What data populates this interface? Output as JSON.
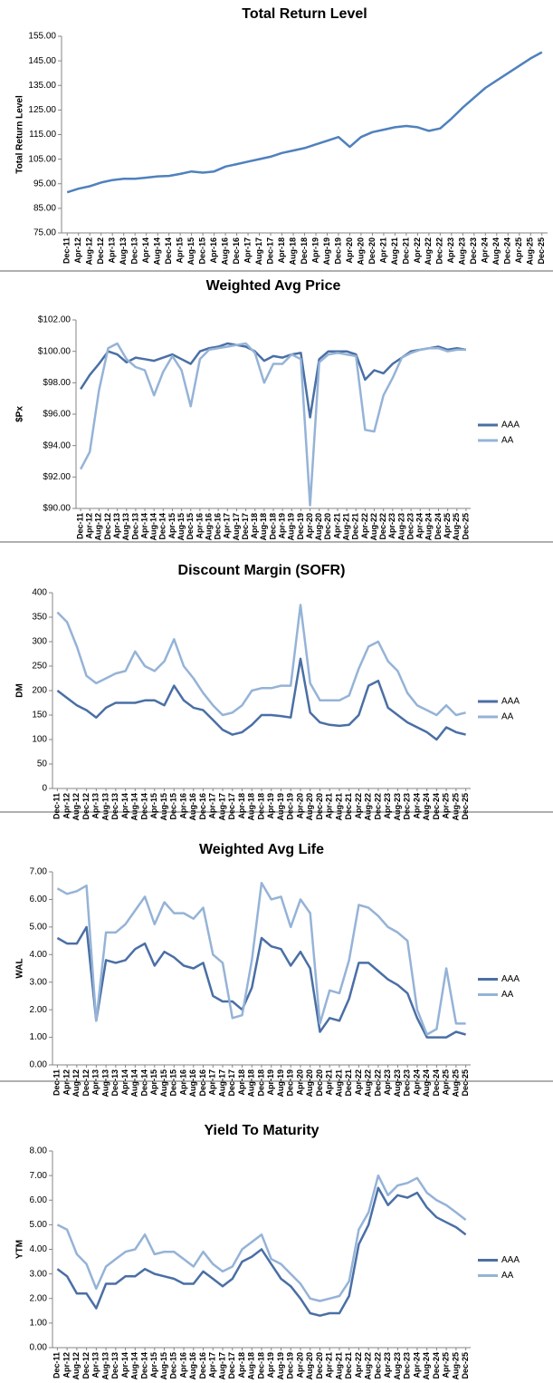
{
  "chart_data": [
    {
      "type": "line",
      "title": "Total Return Level",
      "ylabel": "Total Return Level",
      "categories": [
        "Dec-11",
        "Apr-12",
        "Aug-12",
        "Dec-12",
        "Apr-13",
        "Aug-13",
        "Dec-13",
        "Apr-14",
        "Aug-14",
        "Dec-14",
        "Apr-15",
        "Aug-15",
        "Dec-15",
        "Apr-16",
        "Aug-16",
        "Dec-16",
        "Apr-17",
        "Aug-17",
        "Dec-17",
        "Apr-18",
        "Aug-18",
        "Dec-18",
        "Apr-19",
        "Aug-19",
        "Dec-19",
        "Apr-20",
        "Aug-20",
        "Dec-20",
        "Apr-21",
        "Aug-21",
        "Dec-21",
        "Apr-22",
        "Aug-22",
        "Dec-22",
        "Apr-23",
        "Aug-23",
        "Dec-23",
        "Apr-24",
        "Aug-24",
        "Dec-24",
        "Apr-25",
        "Aug-25",
        "Dec-25"
      ],
      "series": [
        {
          "name": "Total Return Level",
          "color": "#4f81bd",
          "values": [
            91.5,
            93,
            94,
            95.5,
            96.5,
            97,
            97,
            97.5,
            98,
            98.2,
            99,
            100,
            99.5,
            100,
            102,
            103,
            104,
            105,
            106,
            107.5,
            108.5,
            109.5,
            111,
            112.5,
            114,
            110,
            114,
            116,
            117,
            118,
            118.5,
            118,
            116.5,
            117.5,
            121.5,
            126,
            130,
            134,
            137,
            140,
            143,
            146,
            148.5
          ]
        }
      ],
      "ylim": [
        75,
        155
      ],
      "yticks": [
        {
          "value": 75,
          "label": "75.00"
        },
        {
          "value": 85,
          "label": "85.00"
        },
        {
          "value": 95,
          "label": "95.00"
        },
        {
          "value": 105,
          "label": "105.00"
        },
        {
          "value": 115,
          "label": "115.00"
        },
        {
          "value": 125,
          "label": "125.00"
        },
        {
          "value": 135,
          "label": "135.00"
        },
        {
          "value": 145,
          "label": "145.00"
        },
        {
          "value": 155,
          "label": "155.00"
        }
      ],
      "grid": false,
      "legend": false
    },
    {
      "type": "line",
      "title": "Weighted Avg Price",
      "ylabel": "$Px",
      "categories": [
        "Dec-11",
        "Apr-12",
        "Aug-12",
        "Dec-12",
        "Apr-13",
        "Aug-13",
        "Dec-13",
        "Apr-14",
        "Aug-14",
        "Dec-14",
        "Apr-15",
        "Aug-15",
        "Dec-15",
        "Apr-16",
        "Aug-16",
        "Dec-16",
        "Apr-17",
        "Aug-17",
        "Dec-17",
        "Apr-18",
        "Aug-18",
        "Dec-18",
        "Apr-19",
        "Aug-19",
        "Dec-19",
        "Apr-20",
        "Aug-20",
        "Dec-20",
        "Apr-21",
        "Aug-21",
        "Dec-21",
        "Apr-22",
        "Aug-22",
        "Dec-22",
        "Apr-23",
        "Aug-23",
        "Dec-23",
        "Apr-24",
        "Aug-24",
        "Dec-24",
        "Apr-25",
        "Aug-25",
        "Dec-25"
      ],
      "series": [
        {
          "name": "AAA",
          "color": "#4a6fa5",
          "values": [
            97.6,
            98.5,
            99.2,
            100,
            99.8,
            99.3,
            99.6,
            99.5,
            99.4,
            99.6,
            99.8,
            99.5,
            99.2,
            100,
            100.2,
            100.3,
            100.5,
            100.4,
            100.3,
            100,
            99.4,
            99.7,
            99.6,
            99.8,
            99.9,
            95.8,
            99.5,
            100,
            100,
            100,
            99.8,
            98.2,
            98.8,
            98.6,
            99.2,
            99.6,
            100,
            100.1,
            100.2,
            100.3,
            100.1,
            100.2,
            100.1
          ]
        },
        {
          "name": "AA",
          "color": "#95b3d7",
          "values": [
            92.5,
            93.6,
            97.5,
            100.2,
            100.5,
            99.5,
            99,
            98.8,
            97.2,
            98.7,
            99.7,
            98.8,
            96.5,
            99.5,
            100.1,
            100.2,
            100.3,
            100.4,
            100.5,
            99.9,
            98,
            99.2,
            99.2,
            99.8,
            99.5,
            90.2,
            99.3,
            99.8,
            99.9,
            99.8,
            99.7,
            95,
            94.9,
            97.2,
            98.3,
            99.6,
            99.9,
            100.1,
            100.2,
            100.2,
            100,
            100.1,
            100.1
          ]
        }
      ],
      "ylim": [
        90,
        102
      ],
      "yticks": [
        {
          "value": 90,
          "label": "$90.00"
        },
        {
          "value": 92,
          "label": "$92.00"
        },
        {
          "value": 94,
          "label": "$94.00"
        },
        {
          "value": 96,
          "label": "$96.00"
        },
        {
          "value": 98,
          "label": "$98.00"
        },
        {
          "value": 100,
          "label": "$100.00"
        },
        {
          "value": 102,
          "label": "$102.00"
        }
      ],
      "grid": false,
      "legend": "right"
    },
    {
      "type": "line",
      "title": "Discount Margin (SOFR)",
      "ylabel": "DM",
      "categories": [
        "Dec-11",
        "Apr-12",
        "Aug-12",
        "Dec-12",
        "Apr-13",
        "Aug-13",
        "Dec-13",
        "Apr-14",
        "Aug-14",
        "Dec-14",
        "Apr-15",
        "Aug-15",
        "Dec-15",
        "Apr-16",
        "Aug-16",
        "Dec-16",
        "Apr-17",
        "Aug-17",
        "Dec-17",
        "Apr-18",
        "Aug-18",
        "Dec-18",
        "Apr-19",
        "Aug-19",
        "Dec-19",
        "Apr-20",
        "Aug-20",
        "Dec-20",
        "Apr-21",
        "Aug-21",
        "Dec-21",
        "Apr-22",
        "Aug-22",
        "Dec-22",
        "Apr-23",
        "Aug-23",
        "Dec-23",
        "Apr-24",
        "Aug-24",
        "Dec-24",
        "Apr-25",
        "Aug-25",
        "Dec-25"
      ],
      "series": [
        {
          "name": "AAA",
          "color": "#4a6fa5",
          "values": [
            200,
            185,
            170,
            160,
            145,
            165,
            175,
            175,
            175,
            180,
            180,
            170,
            210,
            180,
            165,
            160,
            140,
            120,
            110,
            115,
            130,
            150,
            150,
            148,
            145,
            265,
            155,
            135,
            130,
            128,
            130,
            150,
            210,
            220,
            165,
            150,
            135,
            125,
            115,
            100,
            125,
            115,
            110
          ]
        },
        {
          "name": "AA",
          "color": "#95b3d7",
          "values": [
            360,
            340,
            290,
            230,
            215,
            225,
            235,
            240,
            280,
            250,
            240,
            260,
            305,
            250,
            225,
            195,
            170,
            150,
            155,
            170,
            200,
            205,
            205,
            210,
            210,
            375,
            215,
            180,
            180,
            180,
            190,
            245,
            290,
            300,
            260,
            240,
            195,
            170,
            160,
            150,
            170,
            150,
            155
          ]
        }
      ],
      "ylim": [
        0,
        400
      ],
      "yticks": [
        0,
        50,
        100,
        150,
        200,
        250,
        300,
        350,
        400
      ],
      "grid": false,
      "legend": "right"
    },
    {
      "type": "line",
      "title": "Weighted Avg Life",
      "ylabel": "WAL",
      "categories": [
        "Dec-11",
        "Apr-12",
        "Aug-12",
        "Dec-12",
        "Apr-13",
        "Aug-13",
        "Dec-13",
        "Apr-14",
        "Aug-14",
        "Dec-14",
        "Apr-15",
        "Aug-15",
        "Dec-15",
        "Apr-16",
        "Aug-16",
        "Dec-16",
        "Apr-17",
        "Aug-17",
        "Dec-17",
        "Apr-18",
        "Aug-18",
        "Dec-18",
        "Apr-19",
        "Aug-19",
        "Dec-19",
        "Apr-20",
        "Aug-20",
        "Dec-20",
        "Apr-21",
        "Aug-21",
        "Dec-21",
        "Apr-22",
        "Aug-22",
        "Dec-22",
        "Apr-23",
        "Aug-23",
        "Dec-23",
        "Apr-24",
        "Aug-24",
        "Dec-24",
        "Apr-25",
        "Aug-25",
        "Dec-25"
      ],
      "series": [
        {
          "name": "AAA",
          "color": "#4a6fa5",
          "values": [
            4.6,
            4.4,
            4.4,
            5.0,
            1.6,
            3.8,
            3.7,
            3.8,
            4.2,
            4.4,
            3.6,
            4.1,
            3.9,
            3.6,
            3.5,
            3.7,
            2.5,
            2.3,
            2.3,
            2.0,
            2.8,
            4.6,
            4.3,
            4.2,
            3.6,
            4.1,
            3.5,
            1.2,
            1.7,
            1.6,
            2.4,
            3.7,
            3.7,
            3.4,
            3.1,
            2.9,
            2.6,
            1.7,
            1.0,
            1.0,
            1.0,
            1.2,
            1.1
          ]
        },
        {
          "name": "AA",
          "color": "#95b3d7",
          "values": [
            6.4,
            6.2,
            6.3,
            6.5,
            1.6,
            4.8,
            4.8,
            5.1,
            5.6,
            6.1,
            5.1,
            5.9,
            5.5,
            5.5,
            5.3,
            5.7,
            4.0,
            3.7,
            1.7,
            1.8,
            3.8,
            6.6,
            6.0,
            6.1,
            5.0,
            6.0,
            5.5,
            1.5,
            2.7,
            2.6,
            3.8,
            5.8,
            5.7,
            5.4,
            5.0,
            4.8,
            4.5,
            2.0,
            1.1,
            1.3,
            3.5,
            1.5,
            1.5
          ]
        }
      ],
      "ylim": [
        0,
        7
      ],
      "yticks": [
        {
          "value": 0,
          "label": "0.00"
        },
        {
          "value": 1,
          "label": "1.00"
        },
        {
          "value": 2,
          "label": "2.00"
        },
        {
          "value": 3,
          "label": "3.00"
        },
        {
          "value": 4,
          "label": "4.00"
        },
        {
          "value": 5,
          "label": "5.00"
        },
        {
          "value": 6,
          "label": "6.00"
        },
        {
          "value": 7,
          "label": "7.00"
        }
      ],
      "grid": false,
      "legend": "right"
    },
    {
      "type": "line",
      "title": "Yield To Maturity",
      "ylabel": "YTM",
      "categories": [
        "Dec-11",
        "Apr-12",
        "Aug-12",
        "Dec-12",
        "Apr-13",
        "Aug-13",
        "Dec-13",
        "Apr-14",
        "Aug-14",
        "Dec-14",
        "Apr-15",
        "Aug-15",
        "Dec-15",
        "Apr-16",
        "Aug-16",
        "Dec-16",
        "Apr-17",
        "Aug-17",
        "Dec-17",
        "Apr-18",
        "Aug-18",
        "Dec-18",
        "Apr-19",
        "Aug-19",
        "Dec-19",
        "Apr-20",
        "Aug-20",
        "Dec-20",
        "Apr-21",
        "Aug-21",
        "Dec-21",
        "Apr-22",
        "Aug-22",
        "Dec-22",
        "Apr-23",
        "Aug-23",
        "Dec-23",
        "Apr-24",
        "Aug-24",
        "Dec-24",
        "Apr-25",
        "Aug-25",
        "Dec-25"
      ],
      "series": [
        {
          "name": "AAA",
          "color": "#4a6fa5",
          "values": [
            3.2,
            2.9,
            2.2,
            2.2,
            1.6,
            2.6,
            2.6,
            2.9,
            2.9,
            3.2,
            3.0,
            2.9,
            2.8,
            2.6,
            2.6,
            3.1,
            2.8,
            2.5,
            2.8,
            3.5,
            3.7,
            4.0,
            3.4,
            2.8,
            2.5,
            2.0,
            1.4,
            1.3,
            1.4,
            1.4,
            2.1,
            4.2,
            5.0,
            6.5,
            5.8,
            6.2,
            6.1,
            6.3,
            5.7,
            5.3,
            5.1,
            4.9,
            4.6
          ]
        },
        {
          "name": "AA",
          "color": "#95b3d7",
          "values": [
            5.0,
            4.8,
            3.8,
            3.4,
            2.4,
            3.3,
            3.6,
            3.9,
            4.0,
            4.6,
            3.8,
            3.9,
            3.9,
            3.6,
            3.3,
            3.9,
            3.4,
            3.1,
            3.3,
            4.0,
            4.3,
            4.6,
            3.6,
            3.4,
            3.0,
            2.6,
            2.0,
            1.9,
            2.0,
            2.1,
            2.7,
            4.8,
            5.5,
            7.0,
            6.2,
            6.6,
            6.7,
            6.9,
            6.3,
            6.0,
            5.8,
            5.5,
            5.2
          ]
        }
      ],
      "ylim": [
        0,
        8
      ],
      "yticks": [
        {
          "value": 0,
          "label": "0.00"
        },
        {
          "value": 1,
          "label": "1.00"
        },
        {
          "value": 2,
          "label": "2.00"
        },
        {
          "value": 3,
          "label": "3.00"
        },
        {
          "value": 4,
          "label": "4.00"
        },
        {
          "value": 5,
          "label": "5.00"
        },
        {
          "value": 6,
          "label": "6.00"
        },
        {
          "value": 7,
          "label": "7.00"
        },
        {
          "value": 8,
          "label": "8.00"
        }
      ],
      "grid": false,
      "legend": "right"
    }
  ]
}
